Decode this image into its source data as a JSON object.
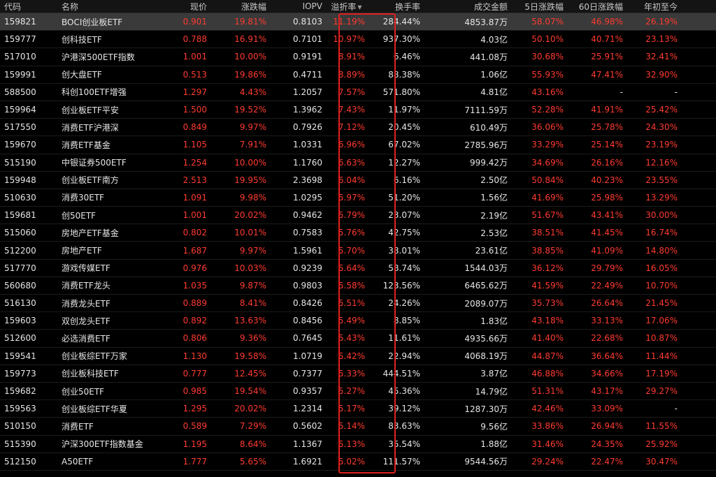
{
  "colors": {
    "up": "#ff3b30",
    "text": "#e6e6e6",
    "background": "#000000",
    "highlight_box": "#e02020",
    "selected_row": "#3a3a3a"
  },
  "headers": {
    "code": "代码",
    "name": "名称",
    "price": "现价",
    "change": "涨跌幅",
    "iopv": "IOPV",
    "premium": "溢折率",
    "premium_sort_icon": "sort-down-icon",
    "turnover": "换手率",
    "amount": "成交金额",
    "d5": "5日涨跌幅",
    "d60": "60日涨跌幅",
    "ytd": "年初至今"
  },
  "rows": [
    {
      "code": "159821",
      "name": "BOCI创业板ETF",
      "price": "0.901",
      "change": "19.81%",
      "iopv": "0.8103",
      "premium": "11.19%",
      "turnover": "284.44%",
      "amount": "4853.87万",
      "d5": "58.07%",
      "d60": "46.98%",
      "ytd": "26.19%"
    },
    {
      "code": "159777",
      "name": "创科技ETF",
      "price": "0.788",
      "change": "16.91%",
      "iopv": "0.7101",
      "premium": "10.97%",
      "turnover": "937.30%",
      "amount": "4.03亿",
      "d5": "50.10%",
      "d60": "40.71%",
      "ytd": "23.13%"
    },
    {
      "code": "517010",
      "name": "沪港深500ETF指数",
      "price": "1.001",
      "change": "10.00%",
      "iopv": "0.9191",
      "premium": "8.91%",
      "turnover": "6.46%",
      "amount": "441.08万",
      "d5": "30.68%",
      "d60": "25.91%",
      "ytd": "32.41%"
    },
    {
      "code": "159991",
      "name": "创大盘ETF",
      "price": "0.513",
      "change": "19.86%",
      "iopv": "0.4711",
      "premium": "8.89%",
      "turnover": "88.38%",
      "amount": "1.06亿",
      "d5": "55.93%",
      "d60": "47.41%",
      "ytd": "32.90%"
    },
    {
      "code": "588500",
      "name": "科创100ETF增强",
      "price": "1.297",
      "change": "4.43%",
      "iopv": "1.2057",
      "premium": "7.57%",
      "turnover": "571.80%",
      "amount": "4.81亿",
      "d5": "43.16%",
      "d60": "-",
      "ytd": "-"
    },
    {
      "code": "159964",
      "name": "创业板ETF平安",
      "price": "1.500",
      "change": "19.52%",
      "iopv": "1.3962",
      "premium": "7.43%",
      "turnover": "11.97%",
      "amount": "7111.59万",
      "d5": "52.28%",
      "d60": "41.91%",
      "ytd": "25.42%"
    },
    {
      "code": "517550",
      "name": "消费ETF沪港深",
      "price": "0.849",
      "change": "9.97%",
      "iopv": "0.7926",
      "premium": "7.12%",
      "turnover": "20.45%",
      "amount": "610.49万",
      "d5": "36.06%",
      "d60": "25.78%",
      "ytd": "24.30%"
    },
    {
      "code": "159670",
      "name": "消费ETF基金",
      "price": "1.105",
      "change": "7.91%",
      "iopv": "1.0331",
      "premium": "6.96%",
      "turnover": "67.02%",
      "amount": "2785.96万",
      "d5": "33.29%",
      "d60": "25.14%",
      "ytd": "23.19%"
    },
    {
      "code": "515190",
      "name": "中银证券500ETF",
      "price": "1.254",
      "change": "10.00%",
      "iopv": "1.1760",
      "premium": "6.63%",
      "turnover": "12.27%",
      "amount": "999.42万",
      "d5": "34.69%",
      "d60": "26.16%",
      "ytd": "12.16%"
    },
    {
      "code": "159948",
      "name": "创业板ETF南方",
      "price": "2.513",
      "change": "19.95%",
      "iopv": "2.3698",
      "premium": "6.04%",
      "turnover": "6.16%",
      "amount": "2.50亿",
      "d5": "50.84%",
      "d60": "40.23%",
      "ytd": "23.55%"
    },
    {
      "code": "510630",
      "name": "消费30ETF",
      "price": "1.091",
      "change": "9.98%",
      "iopv": "1.0295",
      "premium": "5.97%",
      "turnover": "51.20%",
      "amount": "1.56亿",
      "d5": "41.69%",
      "d60": "25.98%",
      "ytd": "13.29%"
    },
    {
      "code": "159681",
      "name": "创50ETF",
      "price": "1.001",
      "change": "20.02%",
      "iopv": "0.9462",
      "premium": "5.79%",
      "turnover": "23.07%",
      "amount": "2.19亿",
      "d5": "51.67%",
      "d60": "43.41%",
      "ytd": "30.00%"
    },
    {
      "code": "515060",
      "name": "房地产ETF基金",
      "price": "0.802",
      "change": "10.01%",
      "iopv": "0.7583",
      "premium": "5.76%",
      "turnover": "42.75%",
      "amount": "2.53亿",
      "d5": "38.51%",
      "d60": "41.45%",
      "ytd": "16.74%"
    },
    {
      "code": "512200",
      "name": "房地产ETF",
      "price": "1.687",
      "change": "9.97%",
      "iopv": "1.5961",
      "premium": "5.70%",
      "turnover": "38.01%",
      "amount": "23.61亿",
      "d5": "38.85%",
      "d60": "41.09%",
      "ytd": "14.80%"
    },
    {
      "code": "517770",
      "name": "游戏传媒ETF",
      "price": "0.976",
      "change": "10.03%",
      "iopv": "0.9239",
      "premium": "5.64%",
      "turnover": "58.74%",
      "amount": "1544.03万",
      "d5": "36.12%",
      "d60": "29.79%",
      "ytd": "16.05%"
    },
    {
      "code": "560680",
      "name": "消费ETF龙头",
      "price": "1.035",
      "change": "9.87%",
      "iopv": "0.9803",
      "premium": "5.58%",
      "turnover": "123.56%",
      "amount": "6465.62万",
      "d5": "41.59%",
      "d60": "22.49%",
      "ytd": "10.70%"
    },
    {
      "code": "516130",
      "name": "消费龙头ETF",
      "price": "0.889",
      "change": "8.41%",
      "iopv": "0.8426",
      "premium": "5.51%",
      "turnover": "24.26%",
      "amount": "2089.07万",
      "d5": "35.73%",
      "d60": "26.64%",
      "ytd": "21.45%"
    },
    {
      "code": "159603",
      "name": "双创龙头ETF",
      "price": "0.892",
      "change": "13.63%",
      "iopv": "0.8456",
      "premium": "5.49%",
      "turnover": "8.85%",
      "amount": "1.83亿",
      "d5": "43.18%",
      "d60": "33.13%",
      "ytd": "17.06%"
    },
    {
      "code": "512600",
      "name": "必选消费ETF",
      "price": "0.806",
      "change": "9.36%",
      "iopv": "0.7645",
      "premium": "5.43%",
      "turnover": "11.61%",
      "amount": "4935.66万",
      "d5": "41.40%",
      "d60": "22.68%",
      "ytd": "10.87%"
    },
    {
      "code": "159541",
      "name": "创业板综ETF万家",
      "price": "1.130",
      "change": "19.58%",
      "iopv": "1.0719",
      "premium": "5.42%",
      "turnover": "22.94%",
      "amount": "4068.19万",
      "d5": "44.87%",
      "d60": "36.64%",
      "ytd": "11.44%"
    },
    {
      "code": "159773",
      "name": "创业板科技ETF",
      "price": "0.777",
      "change": "12.45%",
      "iopv": "0.7377",
      "premium": "5.33%",
      "turnover": "444.51%",
      "amount": "3.87亿",
      "d5": "46.88%",
      "d60": "34.66%",
      "ytd": "17.19%"
    },
    {
      "code": "159682",
      "name": "创业50ETF",
      "price": "0.985",
      "change": "19.54%",
      "iopv": "0.9357",
      "premium": "5.27%",
      "turnover": "45.36%",
      "amount": "14.79亿",
      "d5": "51.31%",
      "d60": "43.17%",
      "ytd": "29.27%"
    },
    {
      "code": "159563",
      "name": "创业板综ETF华夏",
      "price": "1.295",
      "change": "20.02%",
      "iopv": "1.2314",
      "premium": "5.17%",
      "turnover": "39.12%",
      "amount": "1287.30万",
      "d5": "42.46%",
      "d60": "33.09%",
      "ytd": "-"
    },
    {
      "code": "510150",
      "name": "消费ETF",
      "price": "0.589",
      "change": "7.29%",
      "iopv": "0.5602",
      "premium": "5.14%",
      "turnover": "83.63%",
      "amount": "9.56亿",
      "d5": "33.86%",
      "d60": "26.94%",
      "ytd": "11.55%"
    },
    {
      "code": "515390",
      "name": "沪深300ETF指数基金",
      "price": "1.195",
      "change": "8.64%",
      "iopv": "1.1367",
      "premium": "5.13%",
      "turnover": "35.54%",
      "amount": "1.88亿",
      "d5": "31.46%",
      "d60": "24.35%",
      "ytd": "25.92%"
    },
    {
      "code": "512150",
      "name": "A50ETF",
      "price": "1.777",
      "change": "5.65%",
      "iopv": "1.6921",
      "premium": "5.02%",
      "turnover": "111.57%",
      "amount": "9544.56万",
      "d5": "29.24%",
      "d60": "22.47%",
      "ytd": "30.47%"
    }
  ]
}
